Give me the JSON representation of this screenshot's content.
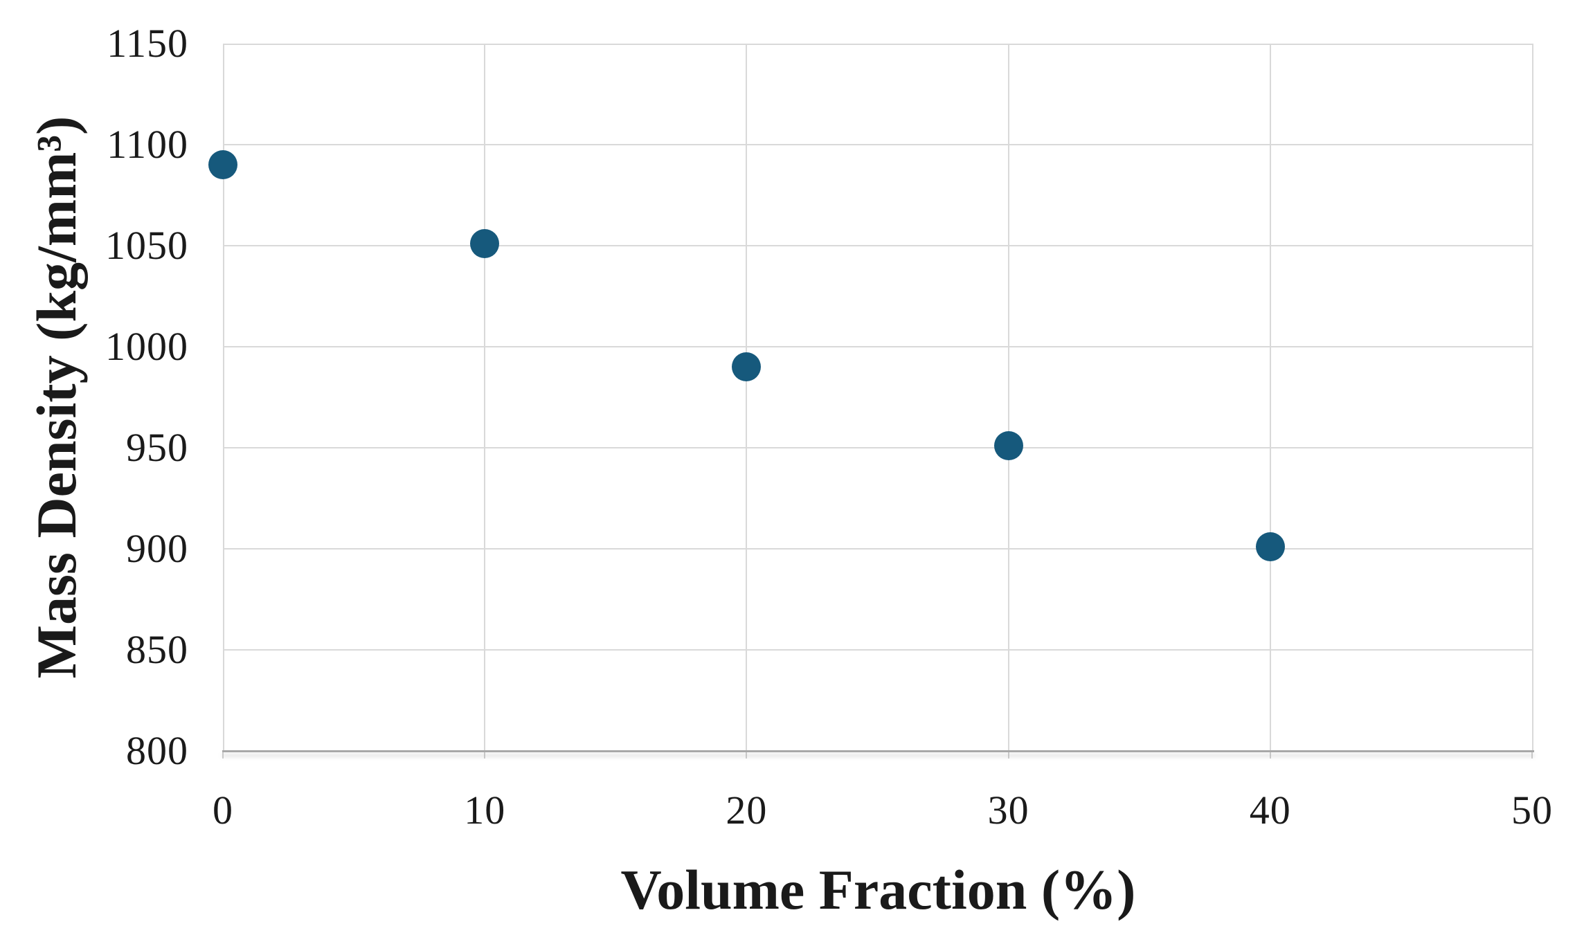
{
  "chart_data": {
    "type": "scatter",
    "title": "",
    "xlabel": "Volume Fraction (%)",
    "ylabel": "Mass Density (kg/mm³)",
    "series": [
      {
        "name": "Mass Density",
        "x": [
          0,
          10,
          20,
          30,
          40
        ],
        "y": [
          1090,
          1051,
          990,
          951,
          901
        ]
      }
    ],
    "xlim": [
      0,
      50
    ],
    "ylim": [
      800,
      1150
    ],
    "xticks": [
      0,
      10,
      20,
      30,
      40,
      50
    ],
    "yticks": [
      800,
      850,
      900,
      950,
      1000,
      1050,
      1100,
      1150
    ],
    "grid": true,
    "legend_visible": false,
    "colors": {
      "marker": "#16597C",
      "gridline": "#d9d9d9",
      "axis_line": "#a8a8a8",
      "text": "#1a1a1a",
      "background": "#ffffff"
    }
  }
}
